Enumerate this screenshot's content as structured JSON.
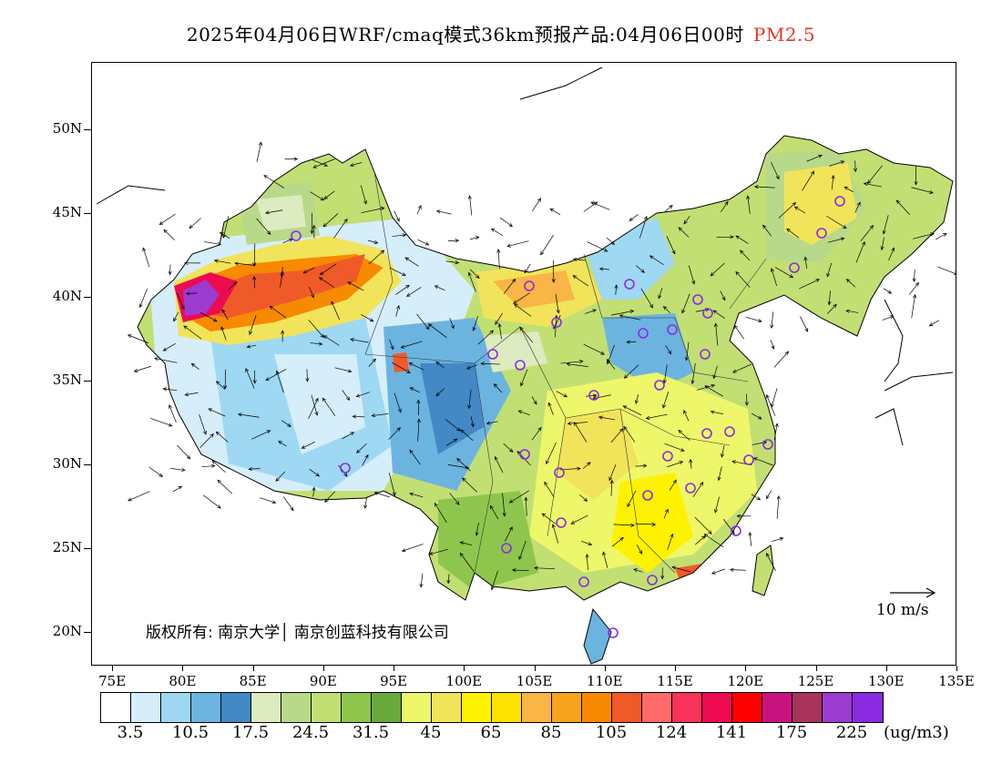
{
  "title": {
    "main": "2025年04月06日WRF/cmaq模式36km预报产品:04月06日00时",
    "pollutant": "PM2.5"
  },
  "axes": {
    "lat_labels": [
      "50N",
      "45N",
      "40N",
      "35N",
      "30N",
      "25N",
      "20N"
    ],
    "lon_labels": [
      "75E",
      "80E",
      "85E",
      "90E",
      "95E",
      "100E",
      "105E",
      "110E",
      "115E",
      "120E",
      "125E",
      "130E",
      "135E"
    ],
    "lon_range": [
      73.5,
      135
    ],
    "lat_range": [
      18,
      54
    ]
  },
  "copyright": "版权所有: 南京大学│ 南京创蓝科技有限公司",
  "wind_scale": {
    "label": "10 m/s"
  },
  "legend": {
    "colors": [
      "#ffffff",
      "#d6eefa",
      "#9fd8f3",
      "#6cb4e0",
      "#4289c6",
      "#dcebc0",
      "#b8d98a",
      "#c2df74",
      "#8ec64d",
      "#6aa93b",
      "#eef76a",
      "#f2e45a",
      "#fff200",
      "#fde100",
      "#f9b545",
      "#f7a31b",
      "#f78a00",
      "#f05a28",
      "#ff6a6a",
      "#f7335a",
      "#ee0a4e",
      "#ff0000",
      "#c8137e",
      "#a8345c",
      "#9b3bd0",
      "#8a2be2"
    ],
    "labels": [
      "3.5",
      "10.5",
      "17.5",
      "24.5",
      "31.5",
      "45",
      "65",
      "85",
      "105",
      "124",
      "141",
      "175",
      "225"
    ],
    "unit": "(ug/m3)"
  }
}
